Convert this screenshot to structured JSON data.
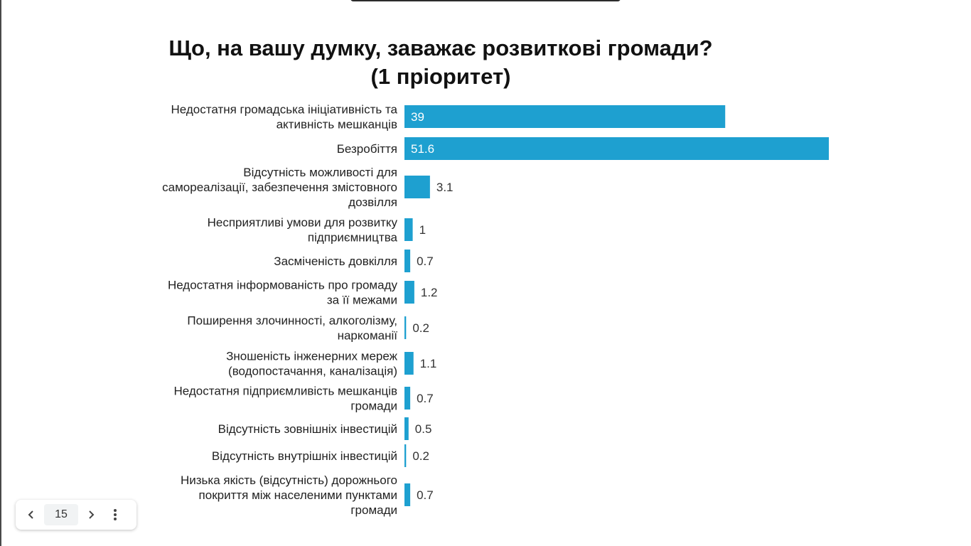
{
  "chart_data": {
    "type": "bar",
    "orientation": "horizontal",
    "title": [
      "Що, на вашу думку, заважає розвиткові громади?",
      "(1 пріоритет)"
    ],
    "categories": [
      [
        "Недостатня громадська ініціативність та",
        "активність мешканців"
      ],
      [
        "Безробіття"
      ],
      [
        "Відсутність можливості для",
        "самореалізації, забезпечення змістовного",
        "дозвілля"
      ],
      [
        "Несприятливі умови для розвитку",
        "підприємництва"
      ],
      [
        "Засміченість довкілля"
      ],
      [
        "Недостатня інформованість про громаду",
        "за її межами"
      ],
      [
        "Поширення злочинності, алкоголізму,",
        "наркоманії"
      ],
      [
        "Зношеність інженерних мереж",
        "(водопостачання, каналізація)"
      ],
      [
        "Недостатня підприємливість мешканців",
        "громади"
      ],
      [
        "Відсутність зовнішніх інвестицій"
      ],
      [
        "Відсутність внутрішніх інвестицій"
      ],
      [
        "Низька якість (відсутність) дорожнього",
        "покриття між населеними пунктами",
        "громади"
      ]
    ],
    "values": [
      39,
      51.6,
      3.1,
      1,
      0.7,
      1.2,
      0.2,
      1.1,
      0.7,
      0.5,
      0.2,
      0.7
    ],
    "value_labels": [
      "39",
      "51.6",
      "3.1",
      "1",
      "0.7",
      "1.2",
      "0.2",
      "1.1",
      "0.7",
      "0.5",
      "0.2",
      "0.7"
    ],
    "xlim": [
      0,
      51.6
    ],
    "grid": false,
    "legend": false,
    "bar_color": "#1ea0d0"
  },
  "pager": {
    "page_number": "15",
    "prev_icon": "chevron-left-icon",
    "next_icon": "chevron-right-icon",
    "more_icon": "more-vertical-icon"
  }
}
